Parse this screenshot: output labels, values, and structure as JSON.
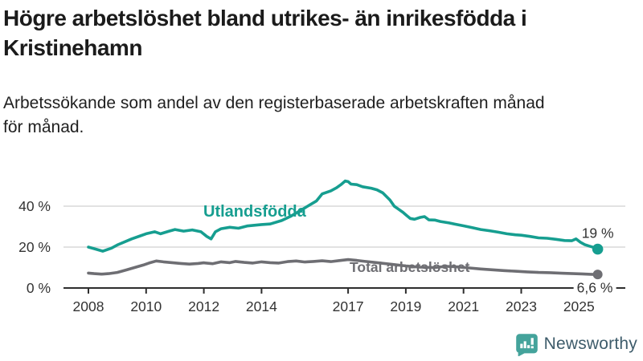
{
  "header": {
    "title_lines": [
      "Högre arbetslöshet bland utrikes- än inrikesfödda i",
      "Kristinehamn"
    ],
    "subtitle_lines": [
      "Arbetssökande som andel av den registerbaserade arbetskraften månad",
      "för månad."
    ]
  },
  "chart_data": {
    "type": "line",
    "title": "Högre arbetslöshet bland utrikes- än inrikesfödda i Kristinehamn",
    "subtitle": "Arbetssökande som andel av den registerbaserade arbetskraften månad för månad.",
    "unit": "%",
    "grid": "horizontal",
    "x_range": [
      2008,
      2025.75
    ],
    "ylim": [
      0,
      55
    ],
    "y_ticks": [
      {
        "value": 0,
        "label": "0 %"
      },
      {
        "value": 20,
        "label": "20 %"
      },
      {
        "value": 40,
        "label": "40 %"
      }
    ],
    "x_ticks": [
      {
        "value": 2008,
        "label": "2008"
      },
      {
        "value": 2010,
        "label": "2010"
      },
      {
        "value": 2012,
        "label": "2012"
      },
      {
        "value": 2014,
        "label": "2014"
      },
      {
        "value": 2017,
        "label": "2017"
      },
      {
        "value": 2019,
        "label": "2019"
      },
      {
        "value": 2021,
        "label": "2021"
      },
      {
        "value": 2023,
        "label": "2023"
      },
      {
        "value": 2025,
        "label": "2025"
      }
    ],
    "series": [
      {
        "name": "Utlandsfödda",
        "color": "#169e90",
        "end_label": "19 %",
        "end_value": 19,
        "points": [
          [
            2008.0,
            20
          ],
          [
            2008.2,
            19.2
          ],
          [
            2008.5,
            18
          ],
          [
            2008.8,
            19.5
          ],
          [
            2009.0,
            21
          ],
          [
            2009.5,
            24
          ],
          [
            2009.8,
            25.5
          ],
          [
            2010.0,
            26.5
          ],
          [
            2010.3,
            27.5
          ],
          [
            2010.5,
            26.5
          ],
          [
            2010.8,
            27.8
          ],
          [
            2011.0,
            28.6
          ],
          [
            2011.3,
            27.8
          ],
          [
            2011.6,
            28.4
          ],
          [
            2011.9,
            27.5
          ],
          [
            2012.1,
            25.2
          ],
          [
            2012.25,
            24
          ],
          [
            2012.4,
            27.5
          ],
          [
            2012.6,
            29
          ],
          [
            2012.9,
            29.7
          ],
          [
            2013.2,
            29.2
          ],
          [
            2013.5,
            30.3
          ],
          [
            2014.0,
            31
          ],
          [
            2014.3,
            31.3
          ],
          [
            2014.7,
            33
          ],
          [
            2015.0,
            35
          ],
          [
            2015.3,
            37.5
          ],
          [
            2015.6,
            40
          ],
          [
            2015.9,
            42.5
          ],
          [
            2016.1,
            46
          ],
          [
            2016.4,
            47.5
          ],
          [
            2016.6,
            49
          ],
          [
            2016.75,
            50.5
          ],
          [
            2016.9,
            52.3
          ],
          [
            2017.0,
            52
          ],
          [
            2017.1,
            50.8
          ],
          [
            2017.3,
            50.5
          ],
          [
            2017.5,
            49.5
          ],
          [
            2017.8,
            48.8
          ],
          [
            2018.0,
            48
          ],
          [
            2018.2,
            46.5
          ],
          [
            2018.45,
            43
          ],
          [
            2018.6,
            40
          ],
          [
            2018.75,
            38.5
          ],
          [
            2018.9,
            37
          ],
          [
            2019.0,
            35.8
          ],
          [
            2019.15,
            34
          ],
          [
            2019.3,
            33.6
          ],
          [
            2019.5,
            34.5
          ],
          [
            2019.65,
            34.9
          ],
          [
            2019.8,
            33.3
          ],
          [
            2020.0,
            33.2
          ],
          [
            2020.2,
            32.5
          ],
          [
            2020.5,
            31.8
          ],
          [
            2020.7,
            31.2
          ],
          [
            2021.0,
            30.4
          ],
          [
            2021.3,
            29.5
          ],
          [
            2021.6,
            28.6
          ],
          [
            2021.9,
            28
          ],
          [
            2022.2,
            27.3
          ],
          [
            2022.5,
            26.5
          ],
          [
            2022.8,
            26
          ],
          [
            2023.0,
            25.8
          ],
          [
            2023.3,
            25.2
          ],
          [
            2023.6,
            24.5
          ],
          [
            2023.9,
            24.3
          ],
          [
            2024.2,
            23.8
          ],
          [
            2024.5,
            23.2
          ],
          [
            2024.75,
            23.1
          ],
          [
            2024.9,
            24
          ],
          [
            2025.05,
            22.4
          ],
          [
            2025.2,
            21.2
          ],
          [
            2025.35,
            20.5
          ],
          [
            2025.5,
            19.9
          ],
          [
            2025.65,
            19
          ]
        ]
      },
      {
        "name": "Total arbetslöshet",
        "color": "#6e6e73",
        "end_label": "6,6 %",
        "end_value": 6.6,
        "points": [
          [
            2008.0,
            7.3
          ],
          [
            2008.2,
            7.0
          ],
          [
            2008.45,
            6.8
          ],
          [
            2008.7,
            7.0
          ],
          [
            2009.0,
            7.6
          ],
          [
            2009.3,
            8.8
          ],
          [
            2009.6,
            10.0
          ],
          [
            2009.9,
            11.2
          ],
          [
            2010.1,
            12.2
          ],
          [
            2010.35,
            13.2
          ],
          [
            2010.6,
            12.8
          ],
          [
            2010.9,
            12.4
          ],
          [
            2011.2,
            12.0
          ],
          [
            2011.5,
            11.7
          ],
          [
            2011.8,
            12.0
          ],
          [
            2012.0,
            12.3
          ],
          [
            2012.3,
            11.9
          ],
          [
            2012.6,
            12.8
          ],
          [
            2012.9,
            12.4
          ],
          [
            2013.1,
            13.0
          ],
          [
            2013.4,
            12.5
          ],
          [
            2013.7,
            12.2
          ],
          [
            2014.0,
            12.8
          ],
          [
            2014.3,
            12.4
          ],
          [
            2014.6,
            12.2
          ],
          [
            2014.9,
            12.9
          ],
          [
            2015.2,
            13.2
          ],
          [
            2015.5,
            12.7
          ],
          [
            2015.8,
            13.0
          ],
          [
            2016.1,
            13.3
          ],
          [
            2016.4,
            12.9
          ],
          [
            2016.7,
            13.4
          ],
          [
            2017.0,
            13.9
          ],
          [
            2017.3,
            13.5
          ],
          [
            2017.6,
            13.0
          ],
          [
            2018.0,
            12.4
          ],
          [
            2018.5,
            11.6
          ],
          [
            2019.0,
            10.8
          ],
          [
            2019.5,
            10.2
          ],
          [
            2020.0,
            10.0
          ],
          [
            2020.4,
            10.6
          ],
          [
            2020.8,
            10.3
          ],
          [
            2021.2,
            9.8
          ],
          [
            2021.6,
            9.3
          ],
          [
            2022.0,
            8.9
          ],
          [
            2022.4,
            8.5
          ],
          [
            2022.8,
            8.2
          ],
          [
            2023.2,
            7.9
          ],
          [
            2023.6,
            7.6
          ],
          [
            2024.0,
            7.5
          ],
          [
            2024.4,
            7.2
          ],
          [
            2024.8,
            7.0
          ],
          [
            2025.1,
            6.9
          ],
          [
            2025.4,
            6.7
          ],
          [
            2025.65,
            6.6
          ]
        ]
      }
    ],
    "colors": {
      "gridline": "#d9d9d9",
      "axis": "#2e2e2e",
      "tick_text": "#333333",
      "value_label_text": "#333333"
    }
  },
  "footer": {
    "brand": "Newsworthy",
    "logo_color": "#44a39b",
    "text_color": "#3e5c6b"
  }
}
